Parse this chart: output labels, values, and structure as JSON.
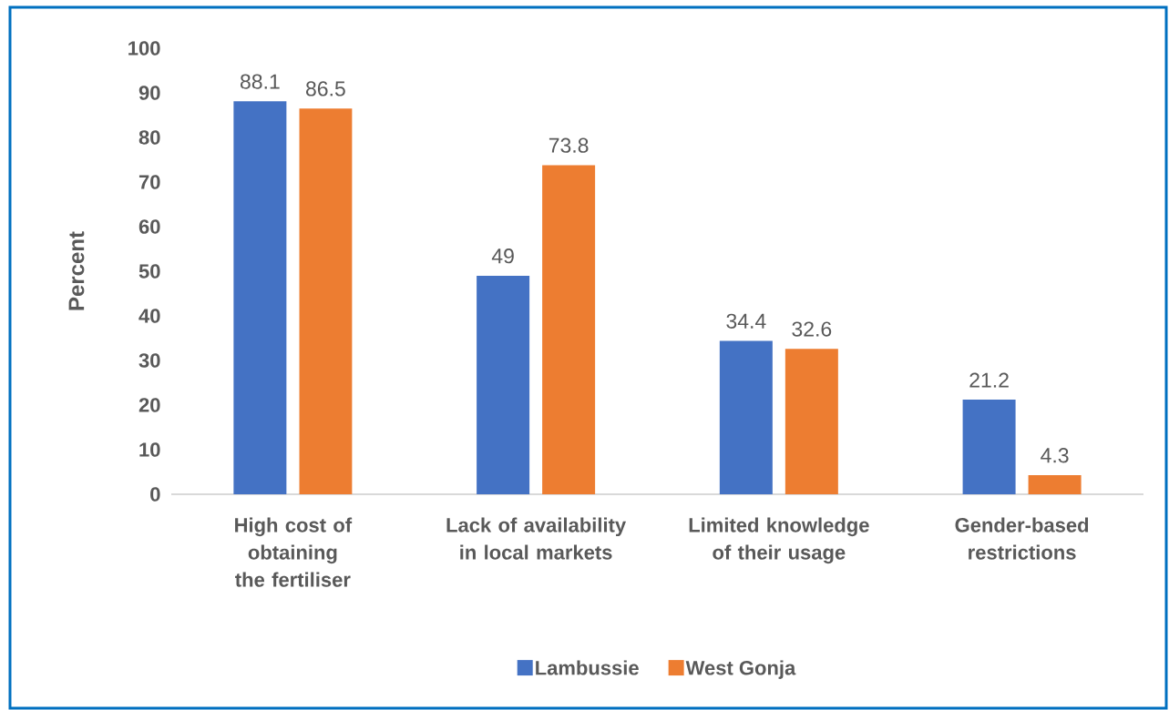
{
  "chart_data": {
    "type": "bar",
    "ylabel": "Percent",
    "categories": [
      "High cost of obtaining the fertiliser",
      "Lack of availability in local markets",
      "Limited knowledge of their usage",
      "Gender-based restrictions"
    ],
    "series": [
      {
        "name": "Lambussie",
        "color": "#4472c4",
        "values": [
          88.1,
          49,
          34.4,
          21.2
        ]
      },
      {
        "name": "West Gonja",
        "color": "#ed7d31",
        "values": [
          86.5,
          73.8,
          32.6,
          4.3
        ]
      }
    ],
    "ylim": [
      0,
      100
    ],
    "yticks": [
      0,
      10,
      20,
      30,
      40,
      50,
      60,
      70,
      80,
      90,
      100
    ],
    "data_labels": true,
    "legend": "bottom",
    "grid": false
  }
}
